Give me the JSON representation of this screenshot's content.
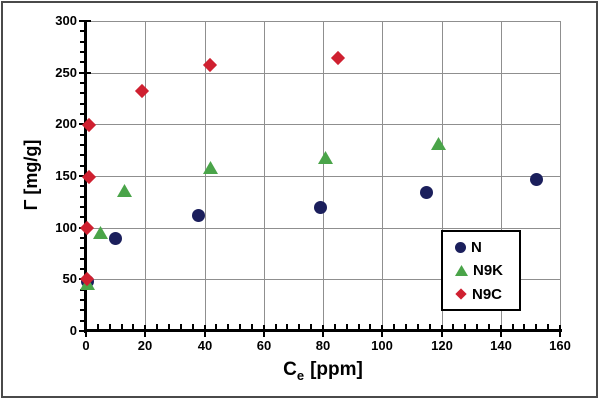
{
  "figure": {
    "background": "#ffffff",
    "border_color": "#4a4a4a"
  },
  "chart_data": {
    "type": "scatter",
    "title": "",
    "ylabel": "Γ [mg/g]",
    "xlabel": {
      "text": "Ce [ppm]",
      "main": "C",
      "sub": "e",
      "unit": "[ppm]"
    },
    "xlim": [
      0,
      160
    ],
    "ylim": [
      0,
      300
    ],
    "x_ticks": [
      0,
      20,
      40,
      60,
      80,
      100,
      120,
      140,
      160
    ],
    "y_ticks": [
      0,
      50,
      100,
      150,
      200,
      250,
      300
    ],
    "x_minor_step": 4,
    "y_minor_step": 10,
    "grid": true,
    "grid_color": "#8f8f8f",
    "axis_color": "#000000",
    "legend": {
      "position": "inside-right",
      "entries": [
        "N",
        "N9K",
        "N9C"
      ]
    },
    "series": [
      {
        "name": "N",
        "marker": "circle",
        "color": "#1b1f5c",
        "points": [
          [
            0.5,
            48
          ],
          [
            10,
            90
          ],
          [
            38,
            112
          ],
          [
            79,
            120
          ],
          [
            115,
            134
          ],
          [
            152,
            147
          ]
        ]
      },
      {
        "name": "N9K",
        "marker": "triangle",
        "color": "#4aa449",
        "points": [
          [
            0.5,
            46
          ],
          [
            5,
            95
          ],
          [
            13,
            136
          ],
          [
            42,
            158
          ],
          [
            81,
            168
          ],
          [
            119,
            181
          ]
        ]
      },
      {
        "name": "N9C",
        "marker": "diamond",
        "color": "#cf2030",
        "points": [
          [
            0.5,
            50
          ],
          [
            0.5,
            100
          ],
          [
            1,
            149
          ],
          [
            1,
            199
          ],
          [
            19,
            232
          ],
          [
            42,
            257
          ],
          [
            85,
            264
          ]
        ]
      }
    ]
  }
}
